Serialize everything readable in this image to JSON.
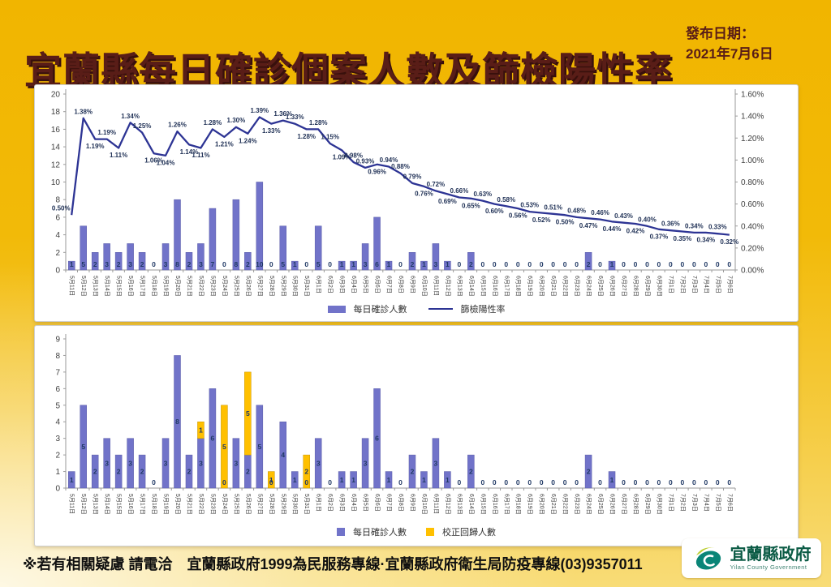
{
  "header": {
    "title": "宜蘭縣每日確診個案人數及篩檢陽性率",
    "publish_label": "發布日期：",
    "publish_date": "2021年7月6日"
  },
  "colors": {
    "background_gold": "#F2B705",
    "title_maroon": "#591D17",
    "bar_purple": "#7173C9",
    "bar_yellow": "#FFC000",
    "line_navy": "#2D3494",
    "label_navy": "#1F3864",
    "logo_green": "#0B5B45"
  },
  "chart_data": [
    {
      "type": "bar",
      "subtype": "bar+line dual axis",
      "categories": [
        "5月11日",
        "5月12日",
        "5月13日",
        "5月14日",
        "5月15日",
        "5月16日",
        "5月17日",
        "5月18日",
        "5月19日",
        "5月20日",
        "5月21日",
        "5月22日",
        "5月23日",
        "5月24日",
        "5月25日",
        "5月26日",
        "5月27日",
        "5月28日",
        "5月29日",
        "5月30日",
        "5月31日",
        "6月1日",
        "6月2日",
        "6月3日",
        "6月4日",
        "6月5日",
        "6月6日",
        "6月7日",
        "6月8日",
        "6月9日",
        "6月10日",
        "6月11日",
        "6月12日",
        "6月13日",
        "6月14日",
        "6月15日",
        "6月16日",
        "6月17日",
        "6月18日",
        "6月19日",
        "6月20日",
        "6月21日",
        "6月22日",
        "6月23日",
        "6月24日",
        "6月25日",
        "6月26日",
        "6月27日",
        "6月28日",
        "6月29日",
        "6月30日",
        "7月1日",
        "7月2日",
        "7月3日",
        "7月4日",
        "7月5日",
        "7月6日"
      ],
      "series": [
        {
          "name": "每日確診人數",
          "type": "bar",
          "color": "#7173C9",
          "values": [
            1,
            5,
            2,
            3,
            2,
            3,
            2,
            0,
            3,
            8,
            2,
            3,
            7,
            0,
            8,
            2,
            10,
            0,
            5,
            1,
            0,
            5,
            0,
            1,
            1,
            3,
            6,
            1,
            0,
            2,
            1,
            3,
            1,
            0,
            2,
            0,
            0,
            0,
            0,
            0,
            0,
            0,
            0,
            0,
            2,
            0,
            1,
            0,
            0,
            0,
            0,
            0,
            0,
            0,
            0,
            0,
            0
          ]
        },
        {
          "name": "篩檢陽性率",
          "type": "line",
          "color": "#2D3494",
          "axis": "right",
          "unit": "%",
          "values": [
            0.5,
            1.38,
            1.19,
            1.19,
            1.11,
            1.34,
            1.25,
            1.06,
            1.04,
            1.26,
            1.14,
            1.11,
            1.28,
            1.21,
            1.3,
            1.24,
            1.39,
            1.33,
            1.36,
            1.33,
            1.28,
            1.28,
            1.15,
            1.09,
            0.98,
            0.93,
            0.96,
            0.94,
            0.88,
            0.79,
            0.76,
            0.72,
            0.69,
            0.66,
            0.65,
            0.63,
            0.6,
            0.58,
            0.56,
            0.53,
            0.52,
            0.51,
            0.5,
            0.48,
            0.47,
            0.46,
            0.44,
            0.43,
            0.42,
            0.4,
            0.37,
            0.36,
            0.35,
            0.34,
            0.34,
            0.33,
            0.32
          ]
        }
      ],
      "left_axis": {
        "min": 0,
        "max": 20,
        "step": 2
      },
      "right_axis": {
        "min": 0,
        "max": 1.6,
        "step": 0.2,
        "format": "0.00%"
      },
      "label_side": "aababaabbabbabababaabaabaabaaabababababababababababababab",
      "grid": false,
      "legend_position": "bottom"
    },
    {
      "type": "bar",
      "subtype": "stacked bar",
      "categories": [
        "5月11日",
        "5月12日",
        "5月13日",
        "5月14日",
        "5月15日",
        "5月16日",
        "5月17日",
        "5月18日",
        "5月19日",
        "5月20日",
        "5月21日",
        "5月22日",
        "5月23日",
        "5月24日",
        "5月25日",
        "5月26日",
        "5月27日",
        "5月28日",
        "5月29日",
        "5月30日",
        "5月31日",
        "6月1日",
        "6月2日",
        "6月3日",
        "6月4日",
        "6月5日",
        "6月6日",
        "6月7日",
        "6月8日",
        "6月9日",
        "6月10日",
        "6月11日",
        "6月12日",
        "6月13日",
        "6月14日",
        "6月15日",
        "6月16日",
        "6月17日",
        "6月18日",
        "6月19日",
        "6月20日",
        "6月21日",
        "6月22日",
        "6月23日",
        "6月24日",
        "6月25日",
        "6月26日",
        "6月27日",
        "6月28日",
        "6月29日",
        "6月30日",
        "7月1日",
        "7月2日",
        "7月3日",
        "7月4日",
        "7月5日",
        "7月6日"
      ],
      "series": [
        {
          "name": "每日確診人數",
          "color": "#7173C9",
          "values": [
            1,
            5,
            2,
            3,
            2,
            3,
            2,
            0,
            3,
            8,
            2,
            3,
            6,
            0,
            3,
            2,
            5,
            0,
            4,
            1,
            0,
            3,
            0,
            1,
            1,
            3,
            6,
            1,
            0,
            2,
            1,
            3,
            1,
            0,
            2,
            0,
            0,
            0,
            0,
            0,
            0,
            0,
            0,
            0,
            2,
            0,
            1,
            0,
            0,
            0,
            0,
            0,
            0,
            0,
            0,
            0,
            0
          ]
        },
        {
          "name": "校正回歸人數",
          "color": "#FFC000",
          "values": [
            0,
            0,
            0,
            0,
            0,
            0,
            0,
            0,
            0,
            0,
            0,
            1,
            0,
            5,
            0,
            5,
            0,
            1,
            0,
            0,
            2,
            0,
            0,
            0,
            0,
            0,
            0,
            0,
            0,
            0,
            0,
            0,
            0,
            0,
            0,
            0,
            0,
            0,
            0,
            0,
            0,
            0,
            0,
            0,
            0,
            0,
            0,
            0,
            0,
            0,
            0,
            0,
            0,
            0,
            0,
            0,
            0
          ]
        }
      ],
      "left_axis": {
        "min": 0,
        "max": 9,
        "step": 1
      },
      "grid": false,
      "legend_position": "bottom"
    }
  ],
  "footer": {
    "note": "※若有相關疑慮 請電洽　宜蘭縣政府1999為民服務專線·宜蘭縣政府衛生局防疫專線(03)9357011",
    "logo_name": "宜蘭縣政府",
    "logo_name_en": "Yilan County Government"
  }
}
